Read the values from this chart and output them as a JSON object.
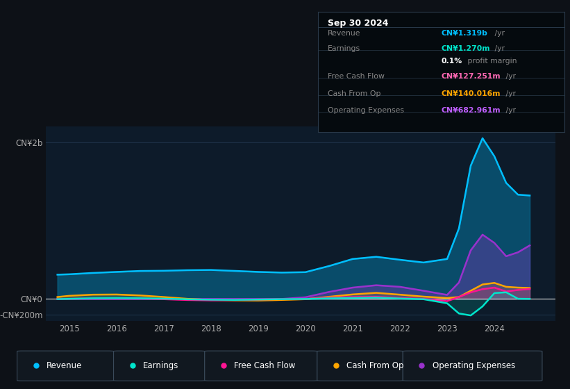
{
  "background_color": "#0d1117",
  "plot_bg_color": "#0d1b2a",
  "title_box": {
    "date": "Sep 30 2024",
    "rows": [
      {
        "label": "Revenue",
        "value": "CN¥1.319b",
        "suffix": " /yr",
        "value_color": "#00bfff"
      },
      {
        "label": "Earnings",
        "value": "CN¥1.270m",
        "suffix": " /yr",
        "value_color": "#00e5cc"
      },
      {
        "label": "",
        "value": "0.1%",
        "suffix": " profit margin",
        "value_color": "#ffffff"
      },
      {
        "label": "Free Cash Flow",
        "value": "CN¥127.251m",
        "suffix": " /yr",
        "value_color": "#ff69b4"
      },
      {
        "label": "Cash From Op",
        "value": "CN¥140.016m",
        "suffix": " /yr",
        "value_color": "#ffa500"
      },
      {
        "label": "Operating Expenses",
        "value": "CN¥682.961m",
        "suffix": " /yr",
        "value_color": "#bf5fff"
      }
    ]
  },
  "xticks": [
    2015,
    2016,
    2017,
    2018,
    2019,
    2020,
    2021,
    2022,
    2023,
    2024
  ],
  "ylim": [
    -280000000,
    2200000000
  ],
  "xlim": [
    2014.5,
    2025.3
  ],
  "ytick_vals": [
    -200000000,
    0,
    2000000000
  ],
  "ytick_labels": [
    "-CN¥200m",
    "CN¥0",
    "CN¥2b"
  ],
  "series": {
    "revenue": {
      "color": "#00bfff",
      "fill_alpha": 0.3,
      "label": "Revenue",
      "x": [
        2014.75,
        2015.0,
        2015.5,
        2016.0,
        2016.5,
        2017.0,
        2017.5,
        2018.0,
        2018.5,
        2019.0,
        2019.5,
        2020.0,
        2020.5,
        2021.0,
        2021.5,
        2022.0,
        2022.5,
        2023.0,
        2023.25,
        2023.5,
        2023.75,
        2024.0,
        2024.25,
        2024.5,
        2024.75
      ],
      "y": [
        310000000,
        315000000,
        332000000,
        345000000,
        357000000,
        360000000,
        367000000,
        370000000,
        358000000,
        345000000,
        337000000,
        342000000,
        420000000,
        510000000,
        538000000,
        500000000,
        465000000,
        510000000,
        900000000,
        1700000000,
        2050000000,
        1820000000,
        1480000000,
        1330000000,
        1319000000
      ]
    },
    "earnings": {
      "color": "#00e5cc",
      "fill_alpha": 0.15,
      "label": "Earnings",
      "x": [
        2014.75,
        2015.0,
        2015.5,
        2016.0,
        2016.5,
        2017.0,
        2017.5,
        2018.0,
        2018.5,
        2019.0,
        2019.5,
        2020.0,
        2020.5,
        2021.0,
        2021.5,
        2022.0,
        2022.5,
        2023.0,
        2023.25,
        2023.5,
        2023.75,
        2024.0,
        2024.25,
        2024.5,
        2024.75
      ],
      "y": [
        -2000000,
        2000000,
        9000000,
        11000000,
        9000000,
        4000000,
        -4000000,
        -9000000,
        -12000000,
        -7000000,
        -2000000,
        0,
        8000000,
        12000000,
        18000000,
        6000000,
        -3000000,
        -55000000,
        -185000000,
        -210000000,
        -95000000,
        75000000,
        85000000,
        3000000,
        1270000
      ]
    },
    "free_cash_flow": {
      "color": "#ff1493",
      "fill_alpha": 0.15,
      "label": "Free Cash Flow",
      "x": [
        2014.75,
        2015.0,
        2015.5,
        2016.0,
        2016.5,
        2017.0,
        2017.5,
        2018.0,
        2018.5,
        2019.0,
        2019.5,
        2020.0,
        2020.5,
        2021.0,
        2021.5,
        2022.0,
        2022.5,
        2023.0,
        2023.25,
        2023.5,
        2023.75,
        2024.0,
        2024.25,
        2024.5,
        2024.75
      ],
      "y": [
        0,
        2000000,
        7000000,
        9000000,
        7000000,
        -3000000,
        -13000000,
        -18000000,
        -14000000,
        -7000000,
        -2000000,
        0,
        18000000,
        24000000,
        28000000,
        12000000,
        1000000,
        -28000000,
        25000000,
        85000000,
        125000000,
        145000000,
        95000000,
        115000000,
        127251000
      ]
    },
    "cash_from_op": {
      "color": "#ffa500",
      "fill_alpha": 0.15,
      "label": "Cash From Op",
      "x": [
        2014.75,
        2015.0,
        2015.5,
        2016.0,
        2016.5,
        2017.0,
        2017.5,
        2018.0,
        2018.5,
        2019.0,
        2019.5,
        2020.0,
        2020.5,
        2021.0,
        2021.5,
        2022.0,
        2022.5,
        2023.0,
        2023.25,
        2023.5,
        2023.75,
        2024.0,
        2024.25,
        2024.5,
        2024.75
      ],
      "y": [
        25000000,
        40000000,
        55000000,
        57000000,
        45000000,
        25000000,
        2000000,
        -13000000,
        -18000000,
        -20000000,
        -12000000,
        -3000000,
        28000000,
        58000000,
        78000000,
        55000000,
        30000000,
        12000000,
        25000000,
        105000000,
        185000000,
        205000000,
        155000000,
        145000000,
        140016000
      ]
    },
    "operating_expenses": {
      "color": "#9932cc",
      "fill_alpha": 0.3,
      "label": "Operating Expenses",
      "x": [
        2014.75,
        2015.0,
        2015.5,
        2016.0,
        2016.5,
        2017.0,
        2017.5,
        2018.0,
        2018.5,
        2019.0,
        2019.5,
        2020.0,
        2020.5,
        2021.0,
        2021.5,
        2022.0,
        2022.5,
        2023.0,
        2023.25,
        2023.5,
        2023.75,
        2024.0,
        2024.25,
        2024.5,
        2024.75
      ],
      "y": [
        0,
        0,
        0,
        0,
        0,
        0,
        0,
        0,
        0,
        0,
        0,
        22000000,
        90000000,
        145000000,
        175000000,
        155000000,
        105000000,
        52000000,
        210000000,
        620000000,
        820000000,
        715000000,
        545000000,
        595000000,
        682961000
      ]
    }
  },
  "legend": [
    {
      "label": "Revenue",
      "color": "#00bfff"
    },
    {
      "label": "Earnings",
      "color": "#00e5cc"
    },
    {
      "label": "Free Cash Flow",
      "color": "#ff1493"
    },
    {
      "label": "Cash From Op",
      "color": "#ffa500"
    },
    {
      "label": "Operating Expenses",
      "color": "#9932cc"
    }
  ]
}
